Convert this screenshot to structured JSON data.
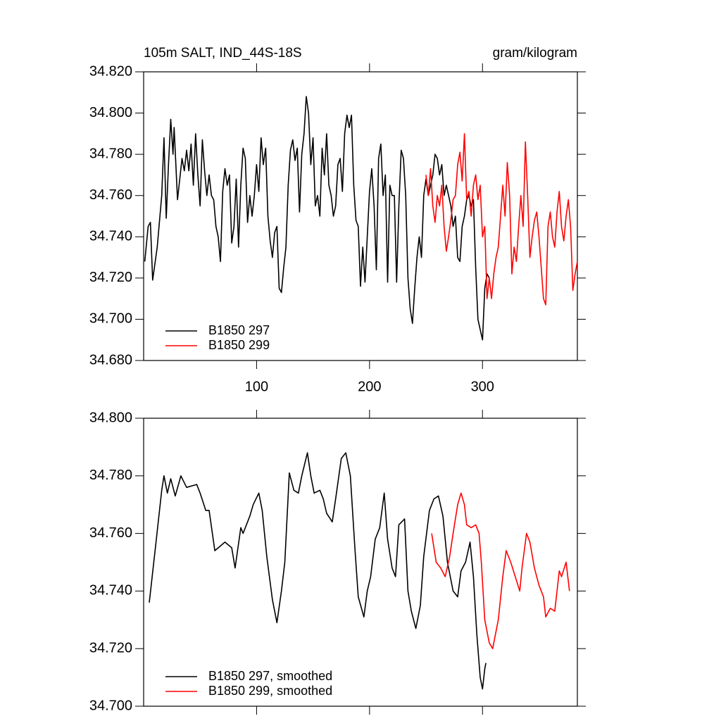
{
  "chart_data": [
    {
      "type": "line",
      "title": "105m SALT, IND_44S-18S",
      "units": "gram/kilogram",
      "xlim": [
        0,
        384
      ],
      "xticks": [
        100,
        200,
        300
      ],
      "show_xtick_labels": true,
      "ylim": [
        34.68,
        34.82
      ],
      "yticks": [
        {
          "value": 34.68,
          "label": "34.680"
        },
        {
          "value": 34.7,
          "label": "34.700"
        },
        {
          "value": 34.72,
          "label": "34.720"
        },
        {
          "value": 34.74,
          "label": "34.740"
        },
        {
          "value": 34.76,
          "label": "34.760"
        },
        {
          "value": 34.78,
          "label": "34.780"
        },
        {
          "value": 34.8,
          "label": "34.800"
        },
        {
          "value": 34.82,
          "label": "34.820"
        }
      ],
      "legend": "lower left",
      "series": [
        {
          "name": "B1850 297",
          "color": "#000000",
          "x": [
            1,
            4,
            6,
            8,
            12,
            16,
            18,
            20,
            22,
            24,
            26,
            27,
            30,
            32,
            34,
            36,
            38,
            40,
            42,
            44,
            46,
            48,
            50,
            52,
            54,
            56,
            58,
            60,
            62,
            64,
            66,
            68,
            70,
            72,
            74,
            76,
            78,
            80,
            82,
            84,
            86,
            88,
            90,
            92,
            94,
            96,
            98,
            100,
            102,
            104,
            106,
            108,
            110,
            112,
            114,
            116,
            118,
            120,
            122,
            124,
            126,
            128,
            130,
            132,
            134,
            136,
            138,
            140,
            142,
            144,
            146,
            148,
            150,
            152,
            154,
            156,
            158,
            160,
            162,
            164,
            166,
            168,
            170,
            172,
            174,
            176,
            178,
            180,
            182,
            184,
            186,
            188,
            190,
            192,
            194,
            196,
            198,
            200,
            202,
            204,
            206,
            208,
            210,
            212,
            214,
            216,
            218,
            220,
            222,
            224,
            226,
            228,
            230,
            232,
            234,
            236,
            238,
            240,
            242,
            244,
            246,
            248,
            250,
            252,
            254,
            256,
            258,
            260,
            262,
            264,
            266,
            268,
            270,
            272,
            274,
            276,
            278,
            280,
            282,
            284,
            286,
            288,
            290,
            292,
            294,
            296,
            298,
            300,
            302,
            304,
            306
          ],
          "values": [
            34.728,
            34.745,
            34.747,
            34.719,
            34.735,
            34.76,
            34.788,
            34.749,
            34.775,
            34.797,
            34.78,
            34.793,
            34.758,
            34.768,
            34.778,
            34.772,
            34.782,
            34.772,
            34.785,
            34.765,
            34.79,
            34.77,
            34.755,
            34.787,
            34.772,
            34.76,
            34.77,
            34.76,
            34.758,
            34.745,
            34.74,
            34.728,
            34.762,
            34.773,
            34.765,
            34.77,
            34.737,
            34.745,
            34.768,
            34.735,
            34.765,
            34.783,
            34.778,
            34.747,
            34.76,
            34.75,
            34.76,
            34.775,
            34.762,
            34.788,
            34.775,
            34.783,
            34.75,
            34.738,
            34.73,
            34.742,
            34.745,
            34.715,
            34.713,
            34.725,
            34.735,
            34.765,
            34.782,
            34.787,
            34.777,
            34.783,
            34.752,
            34.78,
            34.79,
            34.808,
            34.8,
            34.775,
            34.788,
            34.755,
            34.76,
            34.75,
            34.783,
            34.77,
            34.79,
            34.765,
            34.76,
            34.75,
            34.755,
            34.775,
            34.778,
            34.762,
            34.79,
            34.799,
            34.793,
            34.799,
            34.765,
            34.748,
            34.745,
            34.716,
            34.735,
            34.718,
            34.74,
            34.762,
            34.773,
            34.755,
            34.724,
            34.778,
            34.785,
            34.76,
            34.77,
            34.718,
            34.765,
            34.76,
            34.76,
            34.718,
            34.755,
            34.782,
            34.778,
            34.76,
            34.72,
            34.705,
            34.698,
            34.715,
            34.73,
            34.74,
            34.73,
            34.76,
            34.768,
            34.76,
            34.765,
            34.77,
            34.78,
            34.778,
            34.77,
            34.775,
            34.76,
            34.765,
            34.76,
            34.755,
            34.745,
            34.75,
            34.73,
            34.728,
            34.745,
            34.75,
            34.758,
            34.76,
            34.755,
            34.758,
            34.725,
            34.7,
            34.695,
            34.69,
            34.715,
            34.722,
            34.72
          ]
        },
        {
          "name": "B1850 299",
          "color": "#ff0000",
          "x": [
            250,
            252,
            254,
            256,
            258,
            260,
            262,
            264,
            266,
            268,
            270,
            272,
            274,
            276,
            278,
            280,
            282,
            284,
            286,
            288,
            290,
            292,
            294,
            296,
            298,
            300,
            302,
            304,
            306,
            308,
            310,
            312,
            314,
            316,
            318,
            320,
            322,
            324,
            326,
            328,
            330,
            332,
            334,
            336,
            338,
            340,
            342,
            344,
            346,
            348,
            350,
            352,
            354,
            356,
            358,
            360,
            362,
            364,
            366,
            368,
            370,
            372,
            374,
            376,
            378,
            380,
            382,
            384
          ],
          "values": [
            34.77,
            34.76,
            34.773,
            34.755,
            34.747,
            34.76,
            34.755,
            34.765,
            34.745,
            34.733,
            34.74,
            34.748,
            34.758,
            34.76,
            34.775,
            34.781,
            34.767,
            34.79,
            34.758,
            34.762,
            34.75,
            34.765,
            34.77,
            34.758,
            34.765,
            34.74,
            34.745,
            34.71,
            34.72,
            34.71,
            34.722,
            34.73,
            34.735,
            34.75,
            34.765,
            34.75,
            34.776,
            34.76,
            34.722,
            34.735,
            34.728,
            34.745,
            34.76,
            34.745,
            34.786,
            34.76,
            34.73,
            34.74,
            34.748,
            34.752,
            34.74,
            34.725,
            34.71,
            34.707,
            34.745,
            34.752,
            34.74,
            34.735,
            34.752,
            34.762,
            34.745,
            34.738,
            34.75,
            34.758,
            34.745,
            34.714,
            34.722,
            34.728
          ]
        }
      ]
    },
    {
      "type": "line",
      "xlim": [
        0,
        384
      ],
      "xticks": [
        100,
        200,
        300
      ],
      "show_xtick_labels": false,
      "ylim": [
        34.7,
        34.8
      ],
      "yticks": [
        {
          "value": 34.7,
          "label": "34.700"
        },
        {
          "value": 34.72,
          "label": "34.720"
        },
        {
          "value": 34.74,
          "label": "34.740"
        },
        {
          "value": 34.76,
          "label": "34.760"
        },
        {
          "value": 34.78,
          "label": "34.780"
        },
        {
          "value": 34.8,
          "label": "34.800"
        }
      ],
      "legend": "lower left",
      "series": [
        {
          "name": "B1850 297, smoothed",
          "color": "#000000",
          "x": [
            5,
            11,
            16,
            18,
            21,
            24,
            28,
            33,
            38,
            47,
            50,
            55,
            58,
            63,
            69,
            72,
            78,
            81,
            86,
            88,
            94,
            97,
            102,
            105,
            109,
            114,
            118,
            122,
            125,
            129,
            133,
            137,
            140,
            145,
            148,
            151,
            156,
            159,
            162,
            167,
            170,
            175,
            179,
            183,
            187,
            190,
            195,
            198,
            201,
            205,
            209,
            213,
            216,
            220,
            223,
            226,
            231,
            234,
            237,
            241,
            245,
            248,
            253,
            257,
            261,
            265,
            269,
            274,
            278,
            281,
            285,
            289,
            292,
            295,
            298,
            300,
            302,
            303
          ],
          "values": [
            34.736,
            34.757,
            34.775,
            34.78,
            34.774,
            34.779,
            34.773,
            34.78,
            34.776,
            34.777,
            34.774,
            34.768,
            34.768,
            34.754,
            34.756,
            34.757,
            34.755,
            34.748,
            34.762,
            34.76,
            34.766,
            34.77,
            34.774,
            34.768,
            34.752,
            34.737,
            34.729,
            34.74,
            34.75,
            34.781,
            34.775,
            34.774,
            34.78,
            34.788,
            34.78,
            34.774,
            34.775,
            34.772,
            34.767,
            34.764,
            34.772,
            34.786,
            34.788,
            34.78,
            34.755,
            34.738,
            34.731,
            34.74,
            34.745,
            34.758,
            34.762,
            34.774,
            34.758,
            34.748,
            34.745,
            34.763,
            34.765,
            34.74,
            34.733,
            34.727,
            34.735,
            34.752,
            34.768,
            34.772,
            34.773,
            34.766,
            34.75,
            34.74,
            34.738,
            34.747,
            34.75,
            34.757,
            34.745,
            34.725,
            34.71,
            34.706,
            34.713,
            34.715
          ]
        },
        {
          "name": "B1850 299, smoothed",
          "color": "#ff0000",
          "x": [
            255,
            259,
            263,
            267,
            271,
            274,
            278,
            281,
            284,
            286,
            290,
            294,
            297,
            299,
            302,
            306,
            309,
            314,
            318,
            321,
            325,
            329,
            333,
            335,
            339,
            342,
            346,
            350,
            354,
            356,
            360,
            364,
            368,
            370,
            374,
            377
          ],
          "values": [
            34.76,
            34.75,
            34.748,
            34.745,
            34.752,
            34.76,
            34.77,
            34.774,
            34.77,
            34.763,
            34.762,
            34.763,
            34.76,
            34.75,
            34.73,
            34.722,
            34.72,
            34.73,
            34.745,
            34.754,
            34.75,
            34.745,
            34.74,
            34.748,
            34.76,
            34.757,
            34.748,
            34.742,
            34.738,
            34.731,
            34.734,
            34.733,
            34.747,
            34.745,
            34.75,
            34.74
          ]
        }
      ]
    }
  ]
}
